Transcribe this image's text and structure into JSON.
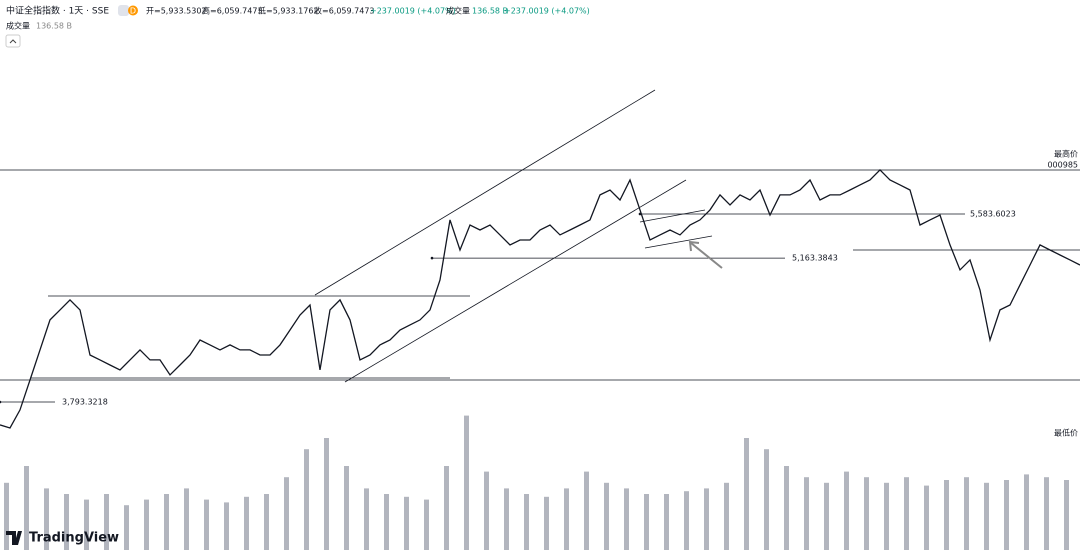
{
  "header": {
    "symbol": "中证全指指数 · 1天 · SSE",
    "badge": "D",
    "open": "开=5,933.5302",
    "high": "高=6,059.7473",
    "low": "低=5,933.1762",
    "close": "收=6,059.7473",
    "change": "+237.0019 (+4.07%)",
    "volume_label": "成交量",
    "volume_value": "136.58 B",
    "volume_change": "+237.0019 (+4.07%)",
    "pane_label": "成交量",
    "pane_value": "136.58 B"
  },
  "right_labels": {
    "high": "最高价",
    "code": "000985",
    "low": "最低价"
  },
  "logo": "TradingView",
  "chart_data": {
    "type": "line",
    "color": "#131722",
    "values": [
      3575,
      3546,
      3718,
      4003,
      4289,
      4575,
      4670,
      4765,
      4670,
      4241,
      4194,
      4146,
      4099,
      4194,
      4289,
      4194,
      4194,
      4051,
      4146,
      4241,
      4384,
      4337,
      4289,
      4337,
      4289,
      4289,
      4241,
      4241,
      4337,
      4479,
      4622,
      4717,
      4099,
      4670,
      4765,
      4575,
      4194,
      4241,
      4337,
      4384,
      4479,
      4527,
      4575,
      4670,
      4955,
      5527,
      5241,
      5479,
      5431,
      5479,
      5384,
      5289,
      5336,
      5336,
      5431,
      5479,
      5384,
      5431,
      5479,
      5527,
      5765,
      5812,
      5717,
      5907,
      5622,
      5336,
      5384,
      5431,
      5384,
      5479,
      5527,
      5622,
      5765,
      5669,
      5765,
      5717,
      5812,
      5574,
      5765,
      5765,
      5812,
      5907,
      5717,
      5765,
      5765,
      5812,
      5860,
      5907,
      6003,
      5907,
      5860,
      5812,
      5479,
      5527,
      5574,
      5289,
      5051,
      5146,
      4860,
      4384,
      4670,
      4717,
      4908,
      5098,
      5289,
      5241,
      5193,
      5146,
      5098
    ],
    "ylim": [
      2384,
      7621
    ],
    "levels": [
      {
        "value": 5583.6023,
        "label": "5,583.6023"
      },
      {
        "value": 5163.3843,
        "label": "5,163.3843"
      },
      {
        "value": 3793.3218,
        "label": "3,793.3218"
      }
    ],
    "volume": {
      "color": "#b2b5be",
      "ylim": [
        0,
        250
      ],
      "values": [
        120,
        150,
        110,
        100,
        90,
        100,
        80,
        90,
        100,
        110,
        90,
        85,
        95,
        100,
        130,
        180,
        200,
        150,
        110,
        100,
        95,
        90,
        150,
        240,
        140,
        110,
        100,
        95,
        110,
        140,
        120,
        110,
        100,
        100,
        105,
        110,
        120,
        200,
        180,
        150,
        130,
        120,
        140,
        130,
        120,
        130,
        115,
        125,
        130,
        120,
        125,
        135,
        130,
        125
      ]
    }
  }
}
